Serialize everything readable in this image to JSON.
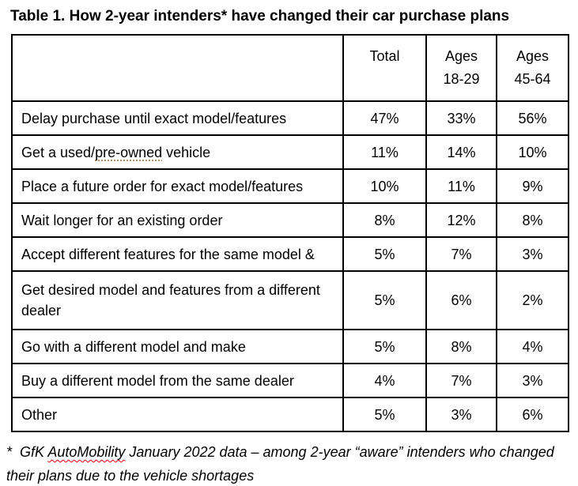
{
  "title": "Table 1. How 2-year intenders* have changed their car purchase plans",
  "table": {
    "header": {
      "blank": "",
      "total": "Total",
      "ages_18_29": {
        "line1": "Ages",
        "line2": "18-29"
      },
      "ages_45_64": {
        "line1": "Ages",
        "line2": "45-64"
      }
    },
    "rows": [
      {
        "label": "Delay purchase until exact model/features",
        "total": "47%",
        "ages_18_29": "33%",
        "ages_45_64": "56%"
      },
      {
        "label_prefix": "Get a used/",
        "label_flagged": "pre-owned",
        "label_suffix": " vehicle",
        "total": "11%",
        "ages_18_29": "14%",
        "ages_45_64": "10%"
      },
      {
        "label": "Place a future order for exact model/features",
        "total": "10%",
        "ages_18_29": "11%",
        "ages_45_64": "9%"
      },
      {
        "label": "Wait longer for an existing order",
        "total": "8%",
        "ages_18_29": "12%",
        "ages_45_64": "8%"
      },
      {
        "label": "Accept different features for the same model &",
        "total": "5%",
        "ages_18_29": "7%",
        "ages_45_64": "3%"
      },
      {
        "label_line1": "Get desired model and features from a different",
        "label_line2": "dealer",
        "total": "5%",
        "ages_18_29": "6%",
        "ages_45_64": "2%"
      },
      {
        "label": "Go with a different model and make",
        "total": "5%",
        "ages_18_29": "8%",
        "ages_45_64": "4%"
      },
      {
        "label": "Buy a different model from the same dealer",
        "total": "4%",
        "ages_18_29": "7%",
        "ages_45_64": "3%"
      },
      {
        "label": "Other",
        "total": "5%",
        "ages_18_29": "3%",
        "ages_45_64": "6%"
      }
    ]
  },
  "footnote": {
    "prefix": "*  GfK ",
    "flagged_word": "AutoMobility",
    "suffix": " January 2022 data – among 2-year “aware” intenders who changed their plans due to the vehicle shortages"
  },
  "flag_colors": {
    "spellcheck_red": "#e00000",
    "refinement_gold": "#b0935d",
    "table_border": "#000000",
    "text": "#000000",
    "background": "#ffffff"
  },
  "chart_data": {
    "type": "table",
    "title": "Table 1. How 2-year intenders* have changed their car purchase plans",
    "columns": [
      "",
      "Total",
      "Ages 18-29",
      "Ages 45-64"
    ],
    "categories": [
      "Delay purchase until exact model/features",
      "Get a used/pre-owned vehicle",
      "Place a future order for exact model/features",
      "Wait longer for an existing order",
      "Accept different features for the same model &",
      "Get desired model and features from a different dealer",
      "Go with a different model and make",
      "Buy a different model from the same dealer",
      "Other"
    ],
    "series": [
      {
        "name": "Total",
        "unit": "%",
        "values": [
          47,
          11,
          10,
          8,
          5,
          5,
          5,
          4,
          5
        ]
      },
      {
        "name": "Ages 18-29",
        "unit": "%",
        "values": [
          33,
          14,
          11,
          12,
          7,
          6,
          8,
          7,
          3
        ]
      },
      {
        "name": "Ages 45-64",
        "unit": "%",
        "values": [
          56,
          10,
          9,
          8,
          3,
          2,
          4,
          3,
          6
        ]
      }
    ],
    "footnote": "*  GfK AutoMobility January 2022 data – among 2-year “aware” intenders who changed their plans due to the vehicle shortages",
    "layout": {
      "grid": true,
      "values_as_percent_strings": true
    }
  }
}
